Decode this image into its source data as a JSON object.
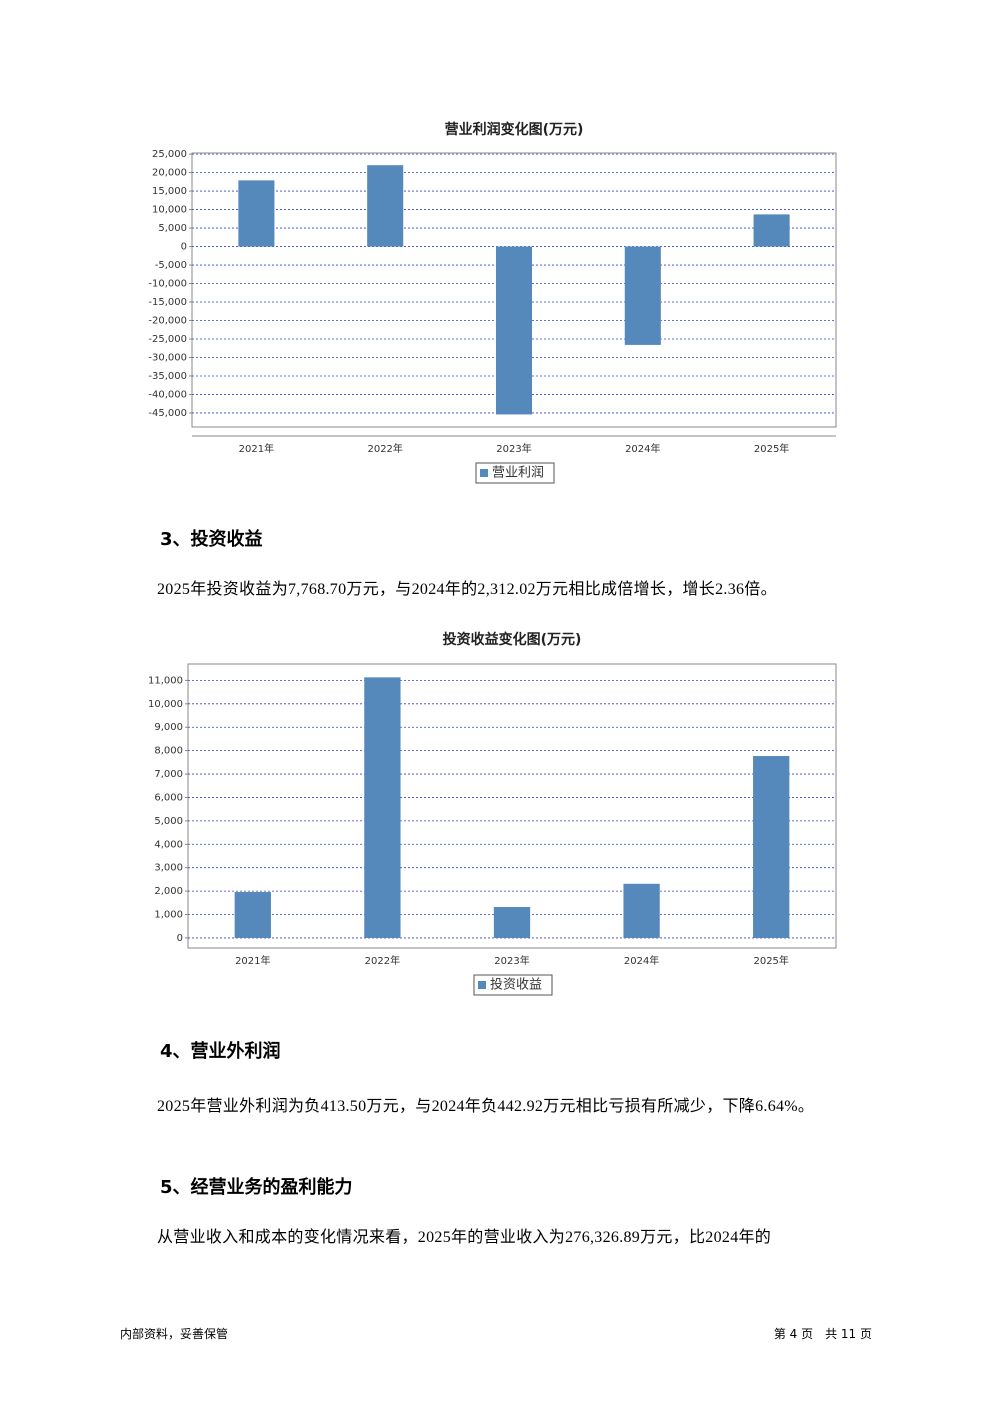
{
  "chart_data": [
    {
      "type": "bar",
      "title": "营业利润变化图(万元)",
      "categories": [
        "2021年",
        "2022年",
        "2023年",
        "2024年",
        "2025年"
      ],
      "series": [
        {
          "name": "营业利润",
          "color": "#5588bb",
          "values": [
            17900,
            22000,
            -45400,
            -26600,
            8700
          ]
        }
      ],
      "ylim": [
        -48800,
        25300
      ],
      "yticks": [
        {
          "value": 25000,
          "label": "25,000"
        },
        {
          "value": 20000,
          "label": "20,000"
        },
        {
          "value": 15000,
          "label": "15,000"
        },
        {
          "value": 10000,
          "label": "10,000"
        },
        {
          "value": 5000,
          "label": "5,000"
        },
        0,
        {
          "value": -5000,
          "label": "-5,000"
        },
        {
          "value": -10000,
          "label": "-10,000"
        },
        {
          "value": -15000,
          "label": "-15,000"
        },
        {
          "value": -20000,
          "label": "-20,000"
        },
        {
          "value": -25000,
          "label": "-25,000"
        },
        {
          "value": -30000,
          "label": "-30,000"
        },
        {
          "value": -35000,
          "label": "-35,000"
        },
        {
          "value": -40000,
          "label": "-40,000"
        },
        {
          "value": -45000,
          "label": "-45,000"
        }
      ],
      "grid": true
    },
    {
      "type": "bar",
      "title": "投资收益变化图(万元)",
      "categories": [
        "2021年",
        "2022年",
        "2023年",
        "2024年",
        "2025年"
      ],
      "series": [
        {
          "name": "投资收益",
          "color": "#5588bb",
          "values": [
            1960,
            11130,
            1320,
            2312.02,
            7768.7
          ]
        }
      ],
      "ylim": [
        -430,
        11700
      ],
      "yticks": [
        0,
        {
          "value": 1000,
          "label": "1,000"
        },
        {
          "value": 2000,
          "label": "2,000"
        },
        {
          "value": 3000,
          "label": "3,000"
        },
        {
          "value": 4000,
          "label": "4,000"
        },
        {
          "value": 5000,
          "label": "5,000"
        },
        {
          "value": 6000,
          "label": "6,000"
        },
        {
          "value": 7000,
          "label": "7,000"
        },
        {
          "value": 8000,
          "label": "8,000"
        },
        {
          "value": 9000,
          "label": "9,000"
        },
        {
          "value": 10000,
          "label": "10,000"
        },
        {
          "value": 11000,
          "label": "11,000"
        }
      ],
      "grid": true
    }
  ],
  "sections": [
    {
      "heading": "3、投资收益",
      "text": "2025年投资收益为7,768.70万元，与2024年的2,312.02万元相比成倍增长，增长2.36倍。"
    },
    {
      "heading": "4、营业外利润",
      "text": "2025年营业外利润为负413.50万元，与2024年负442.92万元相比亏损有所减少，下降6.64%。"
    },
    {
      "heading": "5、经营业务的盈利能力",
      "text": "从营业收入和成本的变化情况来看，2025年的营业收入为276,326.89万元，比2024年的"
    }
  ],
  "footer": {
    "left": "内部资料，妥善保管",
    "right": "第 4 页　共 11 页"
  }
}
